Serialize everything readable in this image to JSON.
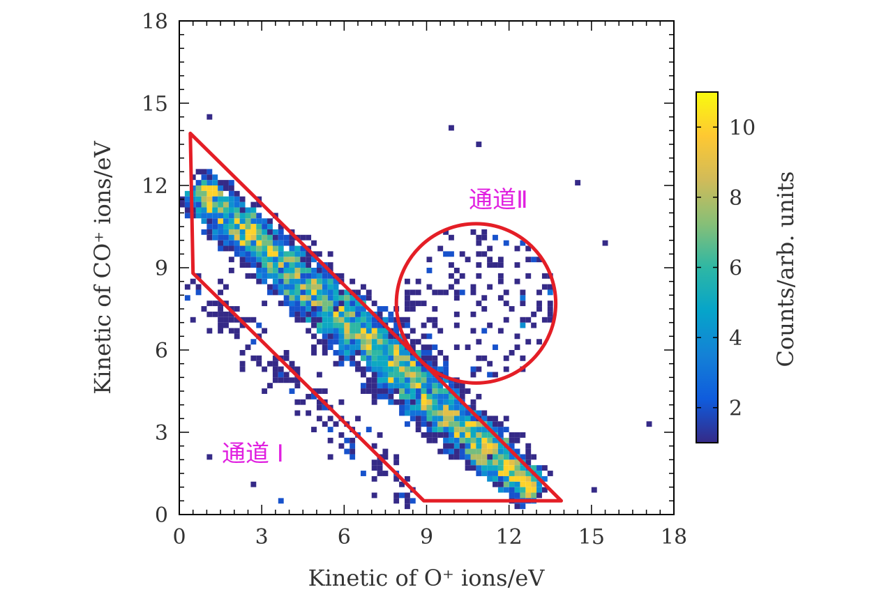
{
  "chart_data": {
    "type": "heatmap",
    "title": "",
    "xlabel": "Kinetic of O⁺ ions/eV",
    "ylabel": "Kinetic of CO⁺ ions/eV",
    "xlim": [
      0,
      18
    ],
    "ylim": [
      0,
      18
    ],
    "xticks": [
      0,
      3,
      6,
      9,
      12,
      15,
      18
    ],
    "yticks": [
      0,
      3,
      6,
      9,
      12,
      15,
      18
    ],
    "xtick_labels": [
      "0",
      "3",
      "6",
      "9",
      "12",
      "15",
      "18"
    ],
    "ytick_labels": [
      "0",
      "3",
      "6",
      "9",
      "12",
      "15",
      "18"
    ],
    "bin_size": 0.2,
    "colorbar": {
      "label": "Counts/arb. units",
      "range": [
        1,
        11
      ],
      "ticks": [
        2,
        4,
        6,
        8,
        10
      ],
      "tick_labels": [
        "2",
        "4",
        "6",
        "8",
        "10"
      ],
      "colormap": "parula",
      "stops": [
        "#352a87",
        "#0f5cdd",
        "#1481d6",
        "#06a4ca",
        "#2eb7a4",
        "#87bf77",
        "#d1bb59",
        "#fec832",
        "#f9fb0e"
      ]
    },
    "main_band": {
      "description": "dense diagonal band of counts",
      "centerline": [
        [
          0.6,
          12.0
        ],
        [
          13.0,
          0.8
        ]
      ],
      "peak_counts": 10
    },
    "regions": [
      {
        "name": "channel-1",
        "label": "通道 I",
        "shape": "polygon",
        "vertices": [
          [
            0.4,
            13.9
          ],
          [
            8.6,
            5.8
          ],
          [
            13.9,
            0.5
          ],
          [
            8.9,
            0.5
          ],
          [
            0.5,
            8.8
          ]
        ]
      },
      {
        "name": "channel-2",
        "label": "通道Ⅱ",
        "shape": "circle",
        "center": [
          10.8,
          7.7
        ],
        "radius": 2.9
      }
    ],
    "region_color": "#e41e26"
  }
}
